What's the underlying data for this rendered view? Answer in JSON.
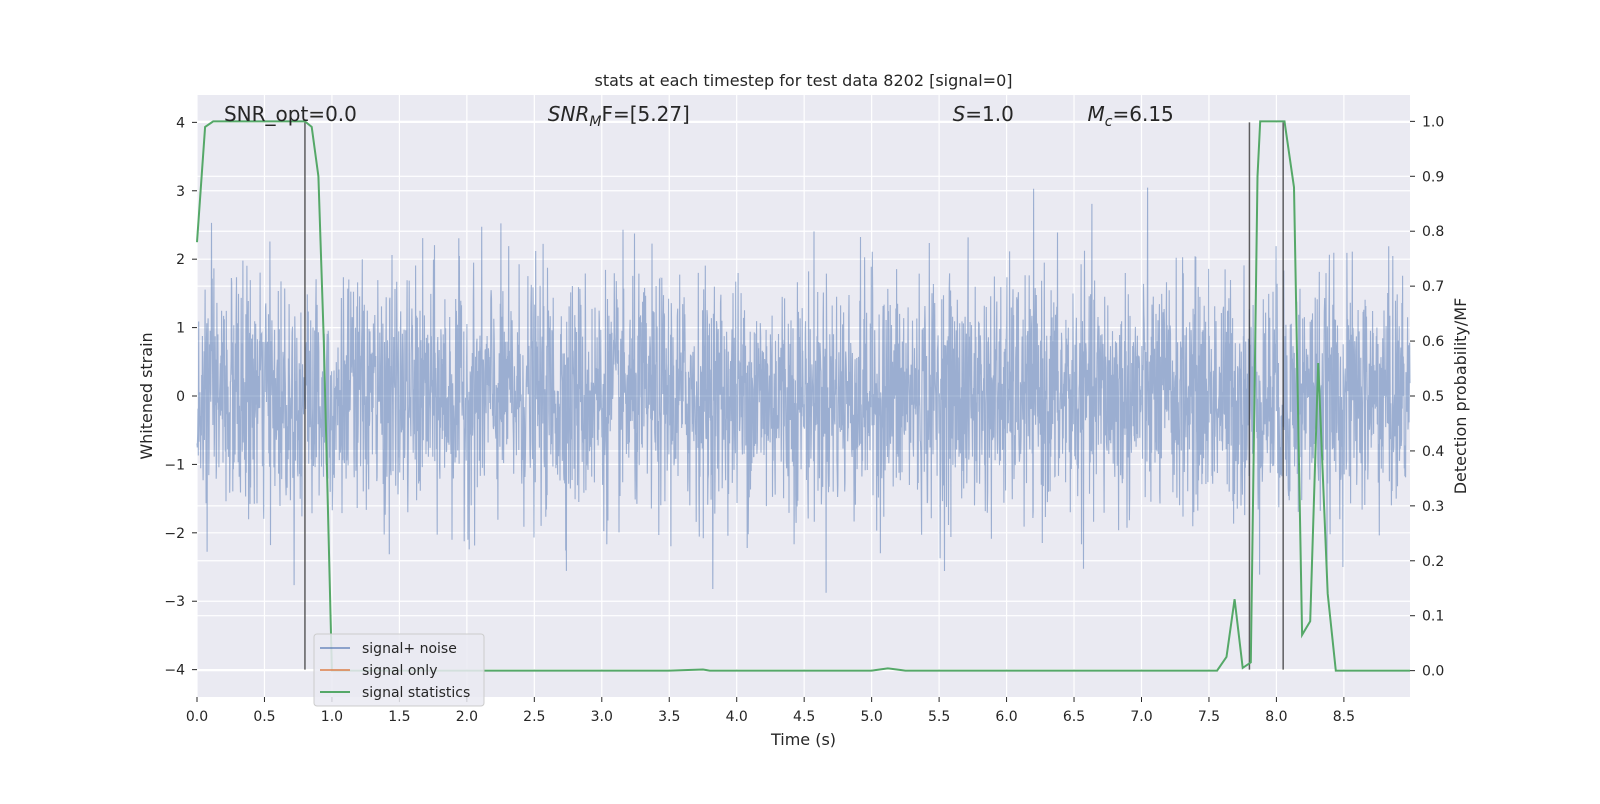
{
  "chart_data": {
    "type": "line",
    "title": "stats at each timestep for test data 8202 [signal=0]",
    "xlabel": "Time (s)",
    "ylabel": "Whitened strain",
    "y2label": "Detection probability/MF",
    "xlim": [
      0.0,
      8.99
    ],
    "ylim": [
      -4.4,
      4.4
    ],
    "y2lim": [
      -0.048,
      1.048
    ],
    "xticks": [
      0.0,
      0.5,
      1.0,
      1.5,
      2.0,
      2.5,
      3.0,
      3.5,
      4.0,
      4.5,
      5.0,
      5.5,
      6.0,
      6.5,
      7.0,
      7.5,
      8.0,
      8.5
    ],
    "xtick_labels": [
      "0.0",
      "0.5",
      "1.0",
      "1.5",
      "2.0",
      "2.5",
      "3.0",
      "3.5",
      "4.0",
      "4.5",
      "5.0",
      "5.5",
      "6.0",
      "6.5",
      "7.0",
      "7.5",
      "8.0",
      "8.5"
    ],
    "yticks": [
      -4,
      -3,
      -2,
      -1,
      0,
      1,
      2,
      3,
      4
    ],
    "ytick_labels": [
      "−4",
      "−3",
      "−2",
      "−1",
      "0",
      "1",
      "2",
      "3",
      "4"
    ],
    "y2ticks": [
      0.0,
      0.1,
      0.2,
      0.3,
      0.4,
      0.5,
      0.6,
      0.7,
      0.8,
      0.9,
      1.0
    ],
    "y2tick_labels": [
      "0.0",
      "0.1",
      "0.2",
      "0.3",
      "0.4",
      "0.5",
      "0.6",
      "0.7",
      "0.8",
      "0.9",
      "1.0"
    ],
    "grid": true,
    "legend_placement": "lower-left",
    "annotations": [
      {
        "id": "snr-opt",
        "text": "SNR_opt=0.0",
        "x": 0.2
      },
      {
        "id": "snr-mf",
        "base": "SNR",
        "sub": "M",
        "rest": "F=[5.27]",
        "x": 2.6
      },
      {
        "id": "s-value",
        "base": "S",
        "rest": "=1.0",
        "x": 5.6
      },
      {
        "id": "mc-value",
        "base": "M",
        "sub": "c",
        "rest": "=6.15",
        "x": 6.6
      }
    ],
    "vertical_markers": [
      0.8,
      7.8,
      8.05
    ],
    "colors": {
      "background": "#eaeaf2",
      "grid": "#ffffff",
      "noise": "#4c72b0",
      "signal_only": "#dd8452",
      "statistics": "#55a868",
      "marker": "#3a3a3a"
    },
    "series": [
      {
        "name": "signal+ noise",
        "kind": "strain",
        "noise_sigma": 0.85,
        "sample_rate": 400
      },
      {
        "name": "signal only",
        "kind": "strain",
        "values": []
      },
      {
        "name": "signal statistics",
        "kind": "probability",
        "x": [
          0.0,
          0.06,
          0.12,
          0.2,
          0.3,
          0.4,
          0.5,
          0.6,
          0.7,
          0.8,
          0.85,
          0.9,
          0.94,
          0.96,
          1.0,
          1.5,
          2.0,
          2.5,
          3.0,
          3.5,
          3.75,
          3.8,
          4.0,
          4.5,
          5.0,
          5.12,
          5.25,
          5.5,
          6.0,
          6.5,
          7.0,
          7.5,
          7.56,
          7.63,
          7.69,
          7.75,
          7.81,
          7.86,
          7.88,
          7.94,
          8.0,
          8.06,
          8.13,
          8.19,
          8.25,
          8.31,
          8.38,
          8.44,
          8.5,
          8.99
        ],
        "values": [
          0.78,
          0.99,
          1.0,
          1.0,
          1.0,
          1.0,
          1.0,
          1.0,
          1.0,
          1.0,
          0.99,
          0.9,
          0.6,
          0.4,
          0.0,
          0.0,
          0.0,
          0.0,
          0.0,
          0.0,
          0.002,
          0.0,
          0.0,
          0.0,
          0.0,
          0.004,
          0.0,
          0.0,
          0.0,
          0.0,
          0.0,
          0.0,
          0.0,
          0.025,
          0.13,
          0.005,
          0.015,
          0.9,
          1.0,
          1.0,
          1.0,
          1.0,
          0.88,
          0.065,
          0.09,
          0.56,
          0.14,
          0.0,
          0.0,
          0.0
        ]
      }
    ]
  }
}
